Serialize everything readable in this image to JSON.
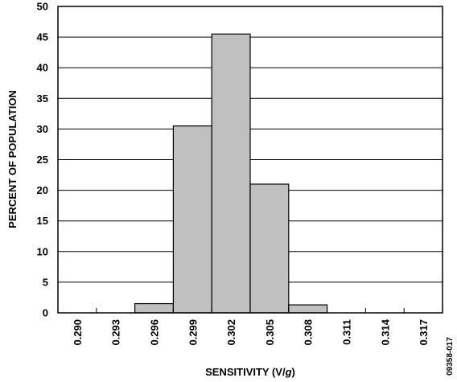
{
  "chart_data": {
    "type": "bar",
    "title": "",
    "xlabel_main": "SENSITIVITY (V/",
    "xlabel_italic": "g",
    "xlabel_close": ")",
    "ylabel": "PERCENT OF POPULATION",
    "categories": [
      "0.290",
      "0.293",
      "0.296",
      "0.299",
      "0.302",
      "0.305",
      "0.308",
      "0.311",
      "0.314",
      "0.317"
    ],
    "values": [
      0,
      0,
      1.5,
      30.5,
      45.5,
      21,
      1.3,
      0,
      0,
      0
    ],
    "yticks": [
      "0",
      "5",
      "10",
      "15",
      "20",
      "25",
      "30",
      "35",
      "40",
      "45",
      "50"
    ],
    "ylim": [
      0,
      50
    ],
    "grid": true,
    "colors": {
      "bar_fill": "#c0c0c0",
      "bar_stroke": "#000000",
      "grid": "#000000"
    }
  },
  "figure_code": "09358-017"
}
